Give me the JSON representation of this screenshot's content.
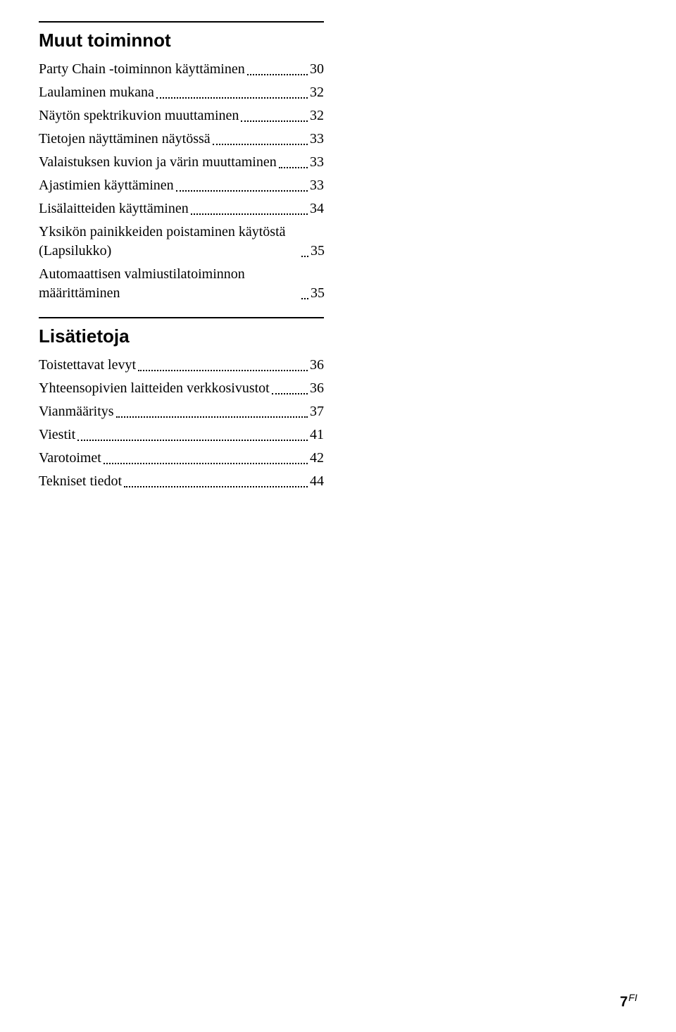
{
  "sections": [
    {
      "heading": "Muut toiminnot",
      "entries": [
        {
          "title": "Party Chain -toiminnon käyttäminen",
          "page": "30"
        },
        {
          "title": "Laulaminen mukana",
          "page": "32"
        },
        {
          "title": "Näytön spektrikuvion muuttaminen",
          "page": "32"
        },
        {
          "title": "Tietojen näyttäminen näytössä",
          "page": "33"
        },
        {
          "title": "Valaistuksen kuvion ja värin muuttaminen",
          "page": "33"
        },
        {
          "title": "Ajastimien käyttäminen",
          "page": "33"
        },
        {
          "title": "Lisälaitteiden käyttäminen",
          "page": "34"
        },
        {
          "title": "Yksikön painikkeiden poistaminen käytöstä (Lapsilukko)",
          "page": "35"
        },
        {
          "title": "Automaattisen valmiustilatoiminnon määrittäminen",
          "page": "35"
        }
      ]
    },
    {
      "heading": "Lisätietoja",
      "entries": [
        {
          "title": "Toistettavat levyt",
          "page": "36"
        },
        {
          "title": "Yhteensopivien laitteiden verkkosivustot",
          "page": "36"
        },
        {
          "title": "Vianmääritys",
          "page": "37"
        },
        {
          "title": "Viestit",
          "page": "41"
        },
        {
          "title": "Varotoimet",
          "page": "42"
        },
        {
          "title": "Tekniset tiedot",
          "page": "44"
        }
      ]
    }
  ],
  "footer": {
    "page_number": "7",
    "suffix": "FI"
  },
  "colors": {
    "text": "#000000",
    "background": "#ffffff"
  },
  "typography": {
    "heading_font": "Arial",
    "heading_size_pt": 20,
    "heading_weight": 700,
    "body_font": "Georgia",
    "body_size_pt": 15
  }
}
